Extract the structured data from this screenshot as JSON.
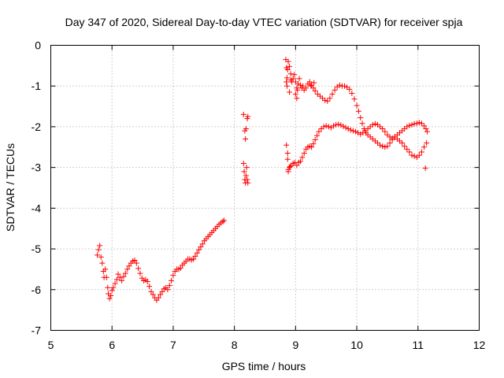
{
  "chart_data": {
    "type": "scatter",
    "title": "Day 347 of 2020, Sidereal Day-to-day VTEC variation (SDTVAR) for receiver spja",
    "xlabel": "GPS time / hours",
    "ylabel": "SDTVAR / TECUs",
    "xlim": [
      5,
      12
    ],
    "ylim": [
      -7,
      0
    ],
    "xticks": [
      "5",
      "6",
      "7",
      "8",
      "9",
      "10",
      "11",
      "12"
    ],
    "yticks": [
      "0",
      "-1",
      "-2",
      "-3",
      "-4",
      "-5",
      "-6",
      "-7"
    ],
    "grid": true,
    "marker": "+",
    "color": "#ff0000",
    "series": [
      {
        "name": "early-segment",
        "points": [
          [
            5.76,
            -5.15
          ],
          [
            5.78,
            -5.02
          ],
          [
            5.8,
            -4.92
          ],
          [
            5.82,
            -5.2
          ],
          [
            5.84,
            -5.35
          ],
          [
            5.86,
            -5.55
          ],
          [
            5.87,
            -5.7
          ],
          [
            5.89,
            -5.5
          ],
          [
            5.91,
            -5.7
          ],
          [
            5.93,
            -5.95
          ],
          [
            5.94,
            -6.1
          ],
          [
            5.96,
            -6.22
          ],
          [
            5.98,
            -6.15
          ],
          [
            6.0,
            -6.02
          ],
          [
            6.02,
            -5.95
          ],
          [
            6.05,
            -5.85
          ],
          [
            6.08,
            -5.75
          ],
          [
            6.1,
            -5.62
          ],
          [
            6.13,
            -5.7
          ],
          [
            6.16,
            -5.78
          ],
          [
            6.19,
            -5.68
          ],
          [
            6.22,
            -5.6
          ],
          [
            6.25,
            -5.5
          ],
          [
            6.28,
            -5.42
          ],
          [
            6.31,
            -5.35
          ],
          [
            6.34,
            -5.3
          ],
          [
            6.37,
            -5.28
          ],
          [
            6.4,
            -5.35
          ],
          [
            6.43,
            -5.48
          ],
          [
            6.46,
            -5.6
          ],
          [
            6.49,
            -5.72
          ],
          [
            6.52,
            -5.78
          ],
          [
            6.55,
            -5.76
          ],
          [
            6.58,
            -5.8
          ],
          [
            6.61,
            -5.92
          ],
          [
            6.64,
            -6.05
          ],
          [
            6.67,
            -6.12
          ],
          [
            6.7,
            -6.2
          ],
          [
            6.73,
            -6.26
          ],
          [
            6.76,
            -6.2
          ],
          [
            6.79,
            -6.12
          ],
          [
            6.82,
            -6.05
          ],
          [
            6.85,
            -5.98
          ],
          [
            6.88,
            -5.95
          ],
          [
            6.91,
            -6.0
          ],
          [
            6.94,
            -5.9
          ],
          [
            6.97,
            -5.78
          ],
          [
            7.0,
            -5.65
          ],
          [
            7.03,
            -5.55
          ],
          [
            7.06,
            -5.5
          ],
          [
            7.09,
            -5.5
          ],
          [
            7.12,
            -5.47
          ],
          [
            7.15,
            -5.4
          ],
          [
            7.18,
            -5.35
          ],
          [
            7.21,
            -5.3
          ],
          [
            7.24,
            -5.25
          ],
          [
            7.27,
            -5.25
          ],
          [
            7.3,
            -5.27
          ],
          [
            7.33,
            -5.25
          ],
          [
            7.36,
            -5.18
          ],
          [
            7.39,
            -5.1
          ],
          [
            7.42,
            -5.02
          ],
          [
            7.45,
            -4.95
          ],
          [
            7.48,
            -4.88
          ],
          [
            7.51,
            -4.8
          ],
          [
            7.54,
            -4.75
          ],
          [
            7.57,
            -4.7
          ],
          [
            7.6,
            -4.65
          ],
          [
            7.63,
            -4.6
          ],
          [
            7.66,
            -4.55
          ],
          [
            7.69,
            -4.5
          ],
          [
            7.72,
            -4.45
          ],
          [
            7.75,
            -4.4
          ],
          [
            7.78,
            -4.36
          ],
          [
            7.81,
            -4.33
          ],
          [
            7.83,
            -4.3
          ]
        ]
      },
      {
        "name": "mid-segment",
        "points": [
          [
            8.15,
            -1.7
          ],
          [
            8.17,
            -2.1
          ],
          [
            8.18,
            -2.3
          ],
          [
            8.19,
            -2.05
          ],
          [
            8.21,
            -1.8
          ],
          [
            8.22,
            -1.75
          ],
          [
            8.15,
            -2.9
          ],
          [
            8.16,
            -3.1
          ],
          [
            8.17,
            -3.3
          ],
          [
            8.18,
            -3.38
          ],
          [
            8.19,
            -3.2
          ],
          [
            8.2,
            -3.0
          ],
          [
            8.21,
            -3.3
          ],
          [
            8.22,
            -3.38
          ]
        ]
      },
      {
        "name": "upper-track",
        "points": [
          [
            8.84,
            -0.35
          ],
          [
            8.85,
            -0.55
          ],
          [
            8.86,
            -0.8
          ],
          [
            8.87,
            -0.6
          ],
          [
            8.88,
            -0.4
          ],
          [
            8.9,
            -0.52
          ],
          [
            8.92,
            -0.7
          ],
          [
            8.94,
            -0.9
          ],
          [
            8.96,
            -0.82
          ],
          [
            8.98,
            -0.72
          ],
          [
            9.0,
            -0.9
          ],
          [
            9.02,
            -1.05
          ],
          [
            9.04,
            -0.95
          ],
          [
            9.06,
            -0.82
          ],
          [
            9.08,
            -0.98
          ],
          [
            9.1,
            -1.05
          ],
          [
            9.12,
            -1.0
          ],
          [
            9.14,
            -1.1
          ],
          [
            9.17,
            -1.05
          ],
          [
            9.2,
            -0.95
          ],
          [
            9.23,
            -0.9
          ],
          [
            9.26,
            -0.98
          ],
          [
            9.29,
            -1.05
          ],
          [
            9.32,
            -1.12
          ],
          [
            9.36,
            -1.2
          ],
          [
            9.4,
            -1.25
          ],
          [
            9.44,
            -1.3
          ],
          [
            9.48,
            -1.35
          ],
          [
            9.52,
            -1.37
          ],
          [
            9.56,
            -1.3
          ],
          [
            9.6,
            -1.2
          ],
          [
            9.64,
            -1.1
          ],
          [
            9.68,
            -1.02
          ],
          [
            9.72,
            -0.98
          ],
          [
            9.76,
            -1.0
          ],
          [
            9.8,
            -1.0
          ],
          [
            9.84,
            -1.03
          ],
          [
            9.88,
            -1.08
          ],
          [
            9.92,
            -1.18
          ],
          [
            9.96,
            -1.32
          ],
          [
            10.0,
            -1.48
          ],
          [
            10.03,
            -1.62
          ],
          [
            10.06,
            -1.78
          ],
          [
            10.09,
            -1.92
          ],
          [
            10.12,
            -2.05
          ],
          [
            10.15,
            -2.15
          ],
          [
            10.18,
            -2.2
          ],
          [
            10.22,
            -2.25
          ],
          [
            10.26,
            -2.3
          ],
          [
            10.3,
            -2.35
          ],
          [
            10.34,
            -2.4
          ],
          [
            10.38,
            -2.45
          ],
          [
            10.42,
            -2.48
          ],
          [
            10.46,
            -2.5
          ],
          [
            10.5,
            -2.48
          ],
          [
            10.54,
            -2.4
          ],
          [
            10.58,
            -2.32
          ],
          [
            10.62,
            -2.25
          ],
          [
            10.66,
            -2.3
          ],
          [
            10.7,
            -2.35
          ],
          [
            10.74,
            -2.4
          ],
          [
            10.78,
            -2.48
          ],
          [
            10.82,
            -2.55
          ],
          [
            10.86,
            -2.62
          ],
          [
            10.9,
            -2.7
          ],
          [
            10.94,
            -2.72
          ],
          [
            10.98,
            -2.75
          ],
          [
            11.02,
            -2.7
          ],
          [
            11.06,
            -2.62
          ],
          [
            11.1,
            -2.5
          ],
          [
            11.14,
            -2.4
          ]
        ]
      },
      {
        "name": "lower-track",
        "points": [
          [
            8.85,
            -2.45
          ],
          [
            8.87,
            -2.8
          ],
          [
            8.88,
            -3.05
          ],
          [
            8.9,
            -3.0
          ],
          [
            8.93,
            -2.95
          ],
          [
            8.96,
            -2.9
          ],
          [
            8.99,
            -2.88
          ],
          [
            9.02,
            -2.95
          ],
          [
            9.05,
            -2.88
          ],
          [
            9.08,
            -2.85
          ],
          [
            9.11,
            -2.75
          ],
          [
            9.14,
            -2.65
          ],
          [
            9.17,
            -2.55
          ],
          [
            9.2,
            -2.5
          ],
          [
            9.23,
            -2.48
          ],
          [
            9.26,
            -2.5
          ],
          [
            9.29,
            -2.42
          ],
          [
            9.32,
            -2.32
          ],
          [
            9.35,
            -2.22
          ],
          [
            9.38,
            -2.12
          ],
          [
            9.42,
            -2.05
          ],
          [
            9.46,
            -2.0
          ],
          [
            9.5,
            -1.98
          ],
          [
            9.54,
            -2.0
          ],
          [
            9.58,
            -2.02
          ],
          [
            9.62,
            -1.98
          ],
          [
            9.66,
            -1.95
          ],
          [
            9.7,
            -1.94
          ],
          [
            9.74,
            -1.96
          ],
          [
            9.78,
            -1.99
          ],
          [
            9.82,
            -2.02
          ],
          [
            9.86,
            -2.05
          ],
          [
            9.9,
            -2.08
          ],
          [
            9.94,
            -2.1
          ],
          [
            9.98,
            -2.12
          ],
          [
            10.02,
            -2.15
          ],
          [
            10.06,
            -2.18
          ],
          [
            10.1,
            -2.15
          ],
          [
            10.14,
            -2.1
          ],
          [
            10.18,
            -2.05
          ],
          [
            10.22,
            -2.0
          ],
          [
            10.26,
            -1.95
          ],
          [
            10.3,
            -1.93
          ],
          [
            10.34,
            -1.95
          ],
          [
            10.38,
            -2.0
          ],
          [
            10.42,
            -2.05
          ],
          [
            10.46,
            -2.12
          ],
          [
            10.5,
            -2.2
          ],
          [
            10.54,
            -2.25
          ],
          [
            10.58,
            -2.28
          ],
          [
            10.62,
            -2.25
          ],
          [
            10.66,
            -2.2
          ],
          [
            10.7,
            -2.15
          ],
          [
            10.74,
            -2.1
          ],
          [
            10.78,
            -2.05
          ],
          [
            10.82,
            -2.0
          ],
          [
            10.86,
            -1.97
          ],
          [
            10.9,
            -1.95
          ],
          [
            10.94,
            -1.93
          ],
          [
            10.98,
            -1.92
          ],
          [
            11.02,
            -1.9
          ],
          [
            11.06,
            -1.92
          ],
          [
            11.1,
            -1.98
          ],
          [
            11.13,
            -2.05
          ],
          [
            11.15,
            -2.12
          ],
          [
            11.12,
            -3.02
          ]
        ]
      },
      {
        "name": "scattered",
        "points": [
          [
            8.85,
            -0.9
          ],
          [
            8.86,
            -1.0
          ],
          [
            8.9,
            -1.15
          ],
          [
            8.92,
            -0.85
          ],
          [
            9.0,
            -1.2
          ],
          [
            9.02,
            -1.3
          ],
          [
            9.03,
            -1.1
          ],
          [
            9.25,
            -1.0
          ],
          [
            9.3,
            -0.92
          ],
          [
            8.88,
            -3.1
          ],
          [
            8.91,
            -2.98
          ],
          [
            8.87,
            -2.65
          ]
        ]
      }
    ]
  }
}
